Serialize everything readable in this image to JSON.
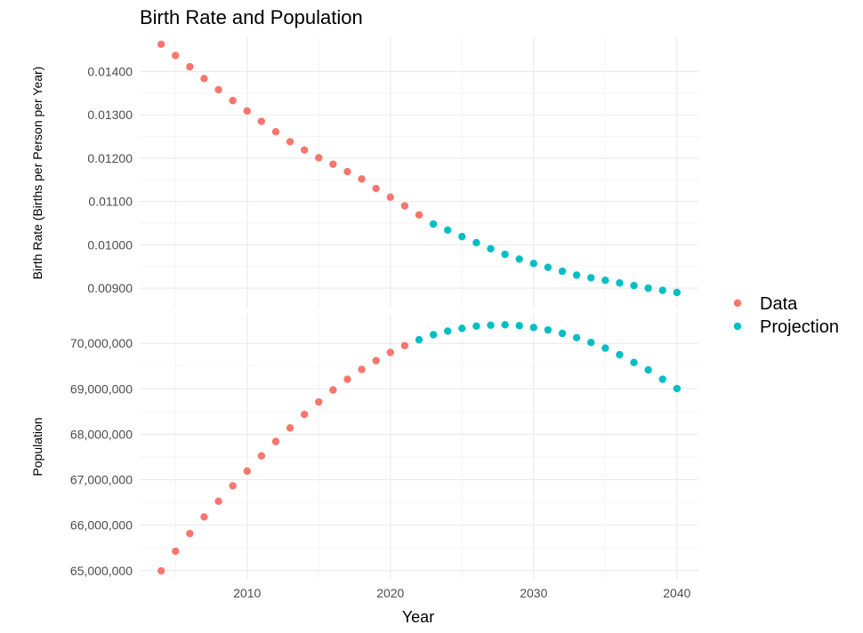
{
  "chart_data": {
    "type": "scatter",
    "title": "Birth Rate and Population",
    "xlabel": "Year",
    "xlim": [
      2002.5,
      2041.5
    ],
    "x_ticks": [
      2010,
      2020,
      2030,
      2040
    ],
    "x_tick_labels": [
      "2010",
      "2020",
      "2030",
      "2040"
    ],
    "grid": true,
    "legend": {
      "placement": "right",
      "entries": [
        {
          "name": "Data",
          "color": "#F8766D"
        },
        {
          "name": "Projection",
          "color": "#00BFC4"
        }
      ]
    },
    "panels": [
      {
        "ylabel": "Birth Rate (Births per Person per Year)",
        "ylim": [
          0.00853,
          0.01479
        ],
        "y_ticks": [
          0.009,
          0.01,
          0.011,
          0.012,
          0.013,
          0.014
        ],
        "y_tick_labels": [
          "0.00900",
          "0.01000",
          "0.01100",
          "0.01200",
          "0.01300",
          "0.01400"
        ],
        "series": [
          {
            "name": "Data",
            "x": [
              2004,
              2005,
              2006,
              2007,
              2008,
              2009,
              2010,
              2011,
              2012,
              2013,
              2014,
              2015,
              2016,
              2017,
              2018,
              2019,
              2020,
              2021,
              2022
            ],
            "y": [
              0.01463,
              0.01437,
              0.01411,
              0.01384,
              0.01358,
              0.01333,
              0.01309,
              0.01285,
              0.01261,
              0.01238,
              0.01219,
              0.01201,
              0.01186,
              0.01169,
              0.01152,
              0.0113,
              0.0111,
              0.0109,
              0.01069
            ]
          },
          {
            "name": "Projection",
            "x": [
              2023,
              2024,
              2025,
              2026,
              2027,
              2028,
              2029,
              2030,
              2031,
              2032,
              2033,
              2034,
              2035,
              2036,
              2037,
              2038,
              2039,
              2040
            ],
            "y": [
              0.01048,
              0.01034,
              0.01019,
              0.01005,
              0.00991,
              0.00978,
              0.00967,
              0.00957,
              0.00948,
              0.00939,
              0.0093,
              0.00924,
              0.00918,
              0.00912,
              0.00906,
              0.009,
              0.00895,
              0.0089
            ]
          }
        ]
      },
      {
        "ylabel": "Population",
        "ylim": [
          64800000,
          70650000
        ],
        "y_ticks": [
          65000000,
          66000000,
          67000000,
          68000000,
          69000000,
          70000000
        ],
        "y_tick_labels": [
          "65,000,000",
          "66,000,000",
          "67,000,000",
          "68,000,000",
          "69,000,000",
          "70,000,000"
        ],
        "series": [
          {
            "name": "Data",
            "x": [
              2004,
              2005,
              2006,
              2007,
              2008,
              2009,
              2010,
              2011,
              2012,
              2013,
              2014,
              2015,
              2016,
              2017,
              2018,
              2019,
              2020,
              2021
            ],
            "y": [
              64995000,
              65425000,
              65815000,
              66180000,
              66525000,
              66865000,
              67190000,
              67525000,
              67840000,
              68140000,
              68435000,
              68710000,
              68975000,
              69210000,
              69425000,
              69620000,
              69800000,
              69950000
            ]
          },
          {
            "name": "Projection",
            "x": [
              2022,
              2023,
              2024,
              2025,
              2026,
              2027,
              2028,
              2029,
              2030,
              2031,
              2032,
              2033,
              2034,
              2035,
              2036,
              2037,
              2038,
              2039,
              2040
            ],
            "y": [
              70080000,
              70190000,
              70270000,
              70330000,
              70380000,
              70400000,
              70410000,
              70390000,
              70350000,
              70295000,
              70220000,
              70125000,
              70020000,
              69895000,
              69750000,
              69580000,
              69415000,
              69210000,
              69005000
            ]
          }
        ]
      }
    ]
  }
}
